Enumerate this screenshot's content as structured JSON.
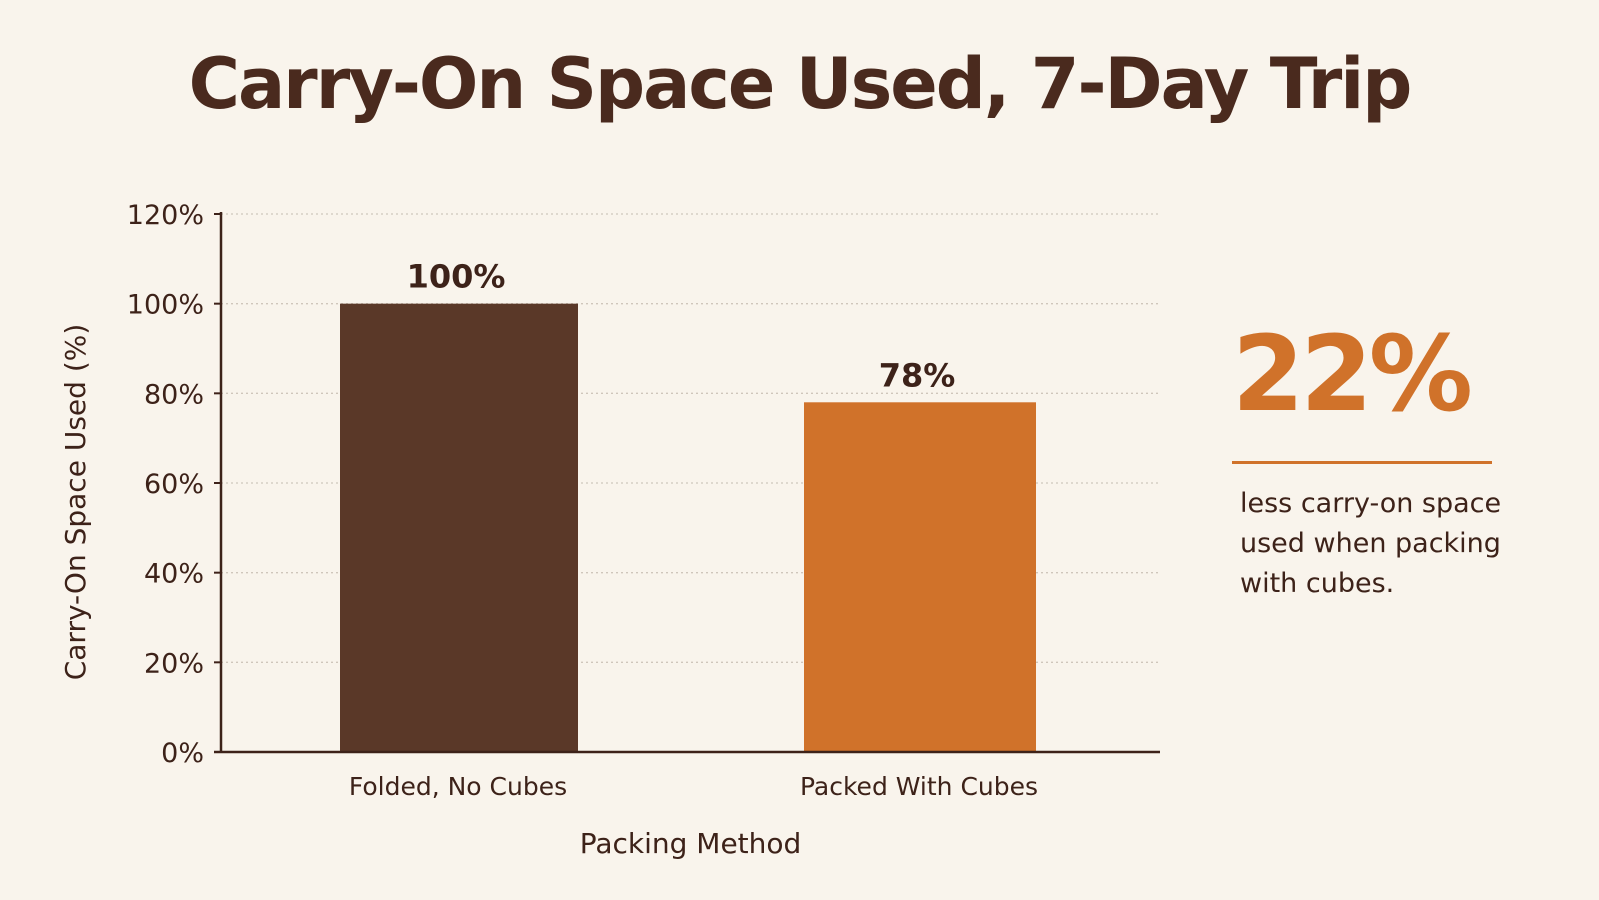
{
  "title": "Carry-On Space Used, 7-Day Trip",
  "colors": {
    "background": "#f9f4ec",
    "text": "#3d2219",
    "axis": "#3d2219",
    "grid": "#cfc6bb",
    "accent": "#d0722a"
  },
  "chart_data": {
    "type": "bar",
    "title": "Carry-On Space Used, 7-Day Trip",
    "xlabel": "Packing Method",
    "ylabel": "Carry-On Space Used (%)",
    "categories": [
      "Folded, No Cubes",
      "Packed With Cubes"
    ],
    "values": [
      100,
      78
    ],
    "data_labels": [
      "100%",
      "78%"
    ],
    "bar_colors": [
      "#5a3828",
      "#d0722a"
    ],
    "ylim": [
      0,
      120
    ],
    "yticks": [
      0,
      20,
      40,
      60,
      80,
      100,
      120
    ],
    "ytick_labels": [
      "0%",
      "20%",
      "40%",
      "60%",
      "80%",
      "100%",
      "120%"
    ],
    "grid": true,
    "legend": "none"
  },
  "callout": {
    "value": "22%",
    "text": "less carry-on space used when packing with cubes."
  }
}
